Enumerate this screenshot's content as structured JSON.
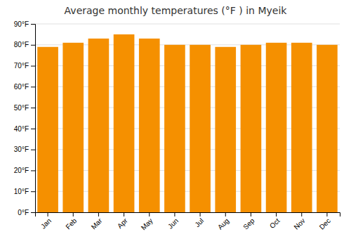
{
  "chart_data": {
    "type": "bar",
    "title": "Average monthly temperatures (°F ) in Myeik",
    "categories": [
      "Jan",
      "Feb",
      "Mar",
      "Apr",
      "May",
      "Jun",
      "Jul",
      "Aug",
      "Sep",
      "Oct",
      "Nov",
      "Dec"
    ],
    "values": [
      79,
      81,
      83,
      85,
      83,
      80,
      80,
      79,
      80,
      81,
      81,
      80
    ],
    "color": "#F59000",
    "ylim": [
      0,
      90
    ],
    "yticks": [
      {
        "value": 0,
        "label": "0°F"
      },
      {
        "value": 10,
        "label": "10°F"
      },
      {
        "value": 20,
        "label": "20°F"
      },
      {
        "value": 30,
        "label": "30°F"
      },
      {
        "value": 40,
        "label": "40°F"
      },
      {
        "value": 50,
        "label": "50°F"
      },
      {
        "value": 60,
        "label": "60°F"
      },
      {
        "value": 70,
        "label": "70°F"
      },
      {
        "value": 80,
        "label": "80°F"
      },
      {
        "value": 90,
        "label": "90°F"
      }
    ],
    "grid": true
  }
}
